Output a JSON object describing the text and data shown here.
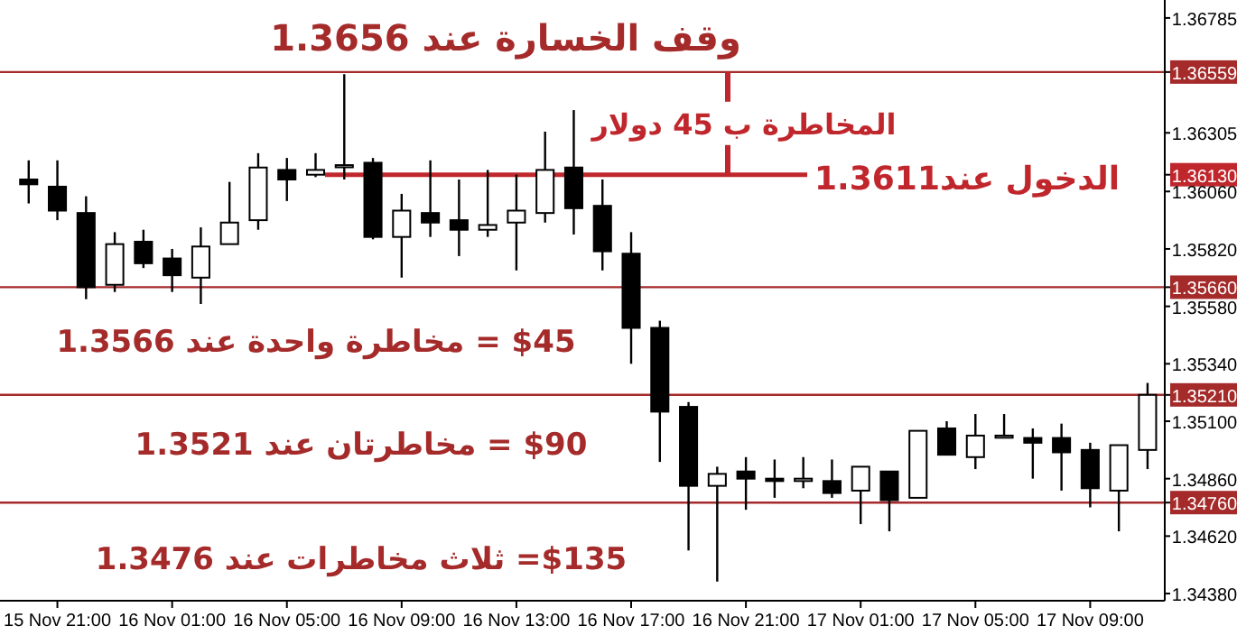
{
  "chart_data": {
    "type": "candlestick",
    "categories": [
      null,
      "15 Nov 21:00",
      null,
      null,
      null,
      "16 Nov 01:00",
      null,
      null,
      null,
      "16 Nov 05:00",
      null,
      null,
      null,
      "16 Nov 09:00",
      null,
      null,
      null,
      "16 Nov 13:00",
      null,
      null,
      null,
      "16 Nov 17:00",
      null,
      null,
      null,
      "16 Nov 21:00",
      null,
      null,
      null,
      "17 Nov 01:00",
      null,
      null,
      null,
      "17 Nov 05:00",
      null,
      null,
      null,
      "17 Nov 09:00",
      null,
      null
    ],
    "ohlc": [
      [
        1.3611,
        1.3619,
        1.3601,
        1.3609
      ],
      [
        1.3608,
        1.3619,
        1.3594,
        1.3598
      ],
      [
        1.3597,
        1.3604,
        1.3561,
        1.3566
      ],
      [
        1.3567,
        1.3589,
        1.3564,
        1.3584
      ],
      [
        1.3585,
        1.359,
        1.3574,
        1.3576
      ],
      [
        1.3578,
        1.3582,
        1.3564,
        1.3571
      ],
      [
        1.357,
        1.3591,
        1.3559,
        1.3583
      ],
      [
        1.3584,
        1.361,
        1.3584,
        1.3593
      ],
      [
        1.3594,
        1.3622,
        1.359,
        1.3616
      ],
      [
        1.3615,
        1.362,
        1.3602,
        1.3611
      ],
      [
        1.3613,
        1.3622,
        1.3612,
        1.3615
      ],
      [
        1.3617,
        1.3655,
        1.3611,
        1.3617
      ],
      [
        1.3618,
        1.362,
        1.3586,
        1.3587
      ],
      [
        1.3587,
        1.3605,
        1.357,
        1.3598
      ],
      [
        1.3597,
        1.3619,
        1.3587,
        1.3593
      ],
      [
        1.3594,
        1.3611,
        1.3579,
        1.359
      ],
      [
        1.359,
        1.3615,
        1.3587,
        1.3592
      ],
      [
        1.3593,
        1.3613,
        1.3573,
        1.3598
      ],
      [
        1.3597,
        1.3631,
        1.3593,
        1.3615
      ],
      [
        1.3616,
        1.364,
        1.3588,
        1.3599
      ],
      [
        1.36,
        1.3611,
        1.3573,
        1.3581
      ],
      [
        1.358,
        1.3589,
        1.3534,
        1.3549
      ],
      [
        1.3549,
        1.3552,
        1.3493,
        1.3514
      ],
      [
        1.3516,
        1.3518,
        1.3456,
        1.3483
      ],
      [
        1.3483,
        1.3491,
        1.3443,
        1.3488
      ],
      [
        1.3489,
        1.3495,
        1.3473,
        1.3486
      ],
      [
        1.3486,
        1.3494,
        1.3478,
        1.3485
      ],
      [
        1.3485,
        1.3495,
        1.3482,
        1.3486
      ],
      [
        1.3485,
        1.3494,
        1.3478,
        1.348
      ],
      [
        1.3481,
        1.3491,
        1.3467,
        1.3491
      ],
      [
        1.3489,
        1.3489,
        1.3464,
        1.3477
      ],
      [
        1.3478,
        1.3506,
        1.3478,
        1.3506
      ],
      [
        1.3507,
        1.351,
        1.3496,
        1.3496
      ],
      [
        1.3495,
        1.3513,
        1.349,
        1.3504
      ],
      [
        1.3504,
        1.3513,
        1.3504,
        1.3504
      ],
      [
        1.3503,
        1.3507,
        1.3486,
        1.3501
      ],
      [
        1.3503,
        1.3509,
        1.3481,
        1.3497
      ],
      [
        1.3498,
        1.3501,
        1.3474,
        1.3482
      ],
      [
        1.3481,
        1.35,
        1.3464,
        1.35
      ],
      [
        1.3498,
        1.3526,
        1.349,
        1.3521
      ]
    ],
    "ylim": [
      1.3435,
      1.3686
    ],
    "yticks": [
      {
        "value": 1.36785,
        "label": "1.36785"
      },
      {
        "value": 1.36559,
        "label": "1.36559"
      },
      {
        "value": 1.36305,
        "label": "1.36305"
      },
      {
        "value": 1.3613,
        "label": "1.36130"
      },
      {
        "value": 1.3606,
        "label": "1.36060"
      },
      {
        "value": 1.3582,
        "label": "1.35820"
      },
      {
        "value": 1.3566,
        "label": "1.35660"
      },
      {
        "value": 1.3558,
        "label": "1.35580"
      },
      {
        "value": 1.3534,
        "label": "1.35340"
      },
      {
        "value": 1.3521,
        "label": "1.35210"
      },
      {
        "value": 1.351,
        "label": "1.35100"
      },
      {
        "value": 1.3486,
        "label": "1.34860"
      },
      {
        "value": 1.3476,
        "label": "1.34760"
      },
      {
        "value": 1.3462,
        "label": "1.34620"
      },
      {
        "value": 1.3438,
        "label": "1.34380"
      }
    ],
    "ref_lines": [
      {
        "axis": "y",
        "value": 1.36559,
        "label": "وقف الخسارة عند 1.3656",
        "color": "#a52a2a"
      },
      {
        "axis": "y",
        "value": 1.3613,
        "label": "الدخول عند1.3611",
        "color": "#c0272d"
      },
      {
        "axis": "y",
        "value": 1.3566,
        "label": "$45 = مخاطرة واحدة عند 1.3566",
        "color": "#a52a2a"
      },
      {
        "axis": "y",
        "value": 1.3521,
        "label": "$90 = مخاطرتان عند 1.3521",
        "color": "#a52a2a"
      },
      {
        "axis": "y",
        "value": 1.3476,
        "label": "$135= ثلاث مخاطرات عند 1.3476",
        "color": "#a52a2a"
      }
    ],
    "annotations": [
      "المخاطرة ب 45 دولار"
    ]
  }
}
